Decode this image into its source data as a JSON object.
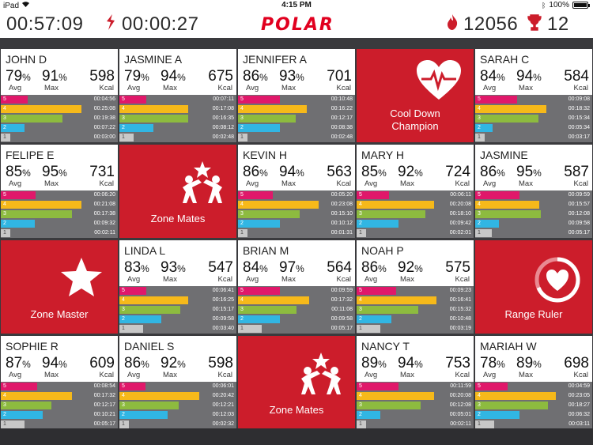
{
  "status_bar": {
    "device": "iPad",
    "time": "4:15 PM",
    "battery": "100%"
  },
  "header": {
    "elapsed": "00:57:09",
    "zone_timer": "00:00:27",
    "brand": "POLAR",
    "total_kcal": "12056",
    "trophies": "12"
  },
  "colors": {
    "z5": "#e0186a",
    "z4": "#f6b91a",
    "z3": "#8dbb3f",
    "z2": "#31b6e3",
    "z1": "#c8c8c8",
    "brand_red": "#cc1d2b"
  },
  "labels": {
    "avg": "Avg",
    "max": "Max",
    "kcal": "Kcal"
  },
  "tiles": [
    {
      "kind": "player",
      "name": "JOHN D",
      "avg": "79",
      "max": "91",
      "kcal": "598",
      "zones": [
        [
          0.23,
          "00:04:56"
        ],
        [
          0.69,
          "00:25:08"
        ],
        [
          0.53,
          "00:19:38"
        ],
        [
          0.2,
          "00:07:22"
        ],
        [
          0.08,
          "00:03:00"
        ]
      ]
    },
    {
      "kind": "player",
      "name": "JASMINE A",
      "avg": "79",
      "max": "94",
      "kcal": "675",
      "zones": [
        [
          0.23,
          "00:07:11"
        ],
        [
          0.59,
          "00:17:08"
        ],
        [
          0.59,
          "00:16:35"
        ],
        [
          0.29,
          "00:08:12"
        ],
        [
          0.12,
          "00:02:48"
        ]
      ]
    },
    {
      "kind": "player",
      "name": "JENNIFER A",
      "avg": "86",
      "max": "93",
      "kcal": "701",
      "zones": [
        [
          0.36,
          "00:10:48"
        ],
        [
          0.59,
          "00:16:22"
        ],
        [
          0.49,
          "00:12:17"
        ],
        [
          0.36,
          "00:08:38"
        ],
        [
          0.08,
          "00:02:48"
        ]
      ]
    },
    {
      "kind": "award",
      "icon": "heart-pulse-icon",
      "label1": "Cool Down",
      "label2": "Champion"
    },
    {
      "kind": "player",
      "name": "SARAH C",
      "avg": "84",
      "max": "94",
      "kcal": "584",
      "zones": [
        [
          0.36,
          "00:09:08"
        ],
        [
          0.61,
          "00:18:32"
        ],
        [
          0.54,
          "00:15:34"
        ],
        [
          0.15,
          "00:05:34"
        ],
        [
          0.08,
          "00:03:17"
        ]
      ]
    },
    {
      "kind": "player",
      "name": "FELIPE E",
      "avg": "85",
      "max": "95",
      "kcal": "731",
      "zones": [
        [
          0.3,
          "00:06:20"
        ],
        [
          0.69,
          "00:21:08"
        ],
        [
          0.61,
          "00:17:38"
        ],
        [
          0.29,
          "00:09:32"
        ],
        [
          0.08,
          "00:02:11"
        ]
      ]
    },
    {
      "kind": "award",
      "icon": "zone-mates-icon",
      "label1": "Zone Mates",
      "label2": ""
    },
    {
      "kind": "player",
      "name": "KEVIN H",
      "avg": "86",
      "max": "94",
      "kcal": "563",
      "zones": [
        [
          0.3,
          "00:05:20"
        ],
        [
          0.69,
          "00:23:08"
        ],
        [
          0.53,
          "00:15:10"
        ],
        [
          0.36,
          "00:10:12"
        ],
        [
          0.08,
          "00:01:31"
        ]
      ]
    },
    {
      "kind": "player",
      "name": "MARY H",
      "avg": "85",
      "max": "92",
      "kcal": "724",
      "zones": [
        [
          0.28,
          "00:06:11"
        ],
        [
          0.66,
          "00:20:08"
        ],
        [
          0.59,
          "00:18:10"
        ],
        [
          0.36,
          "00:09:42"
        ],
        [
          0.08,
          "00:02:01"
        ]
      ]
    },
    {
      "kind": "player",
      "name": "JASMINE",
      "avg": "86",
      "max": "95",
      "kcal": "587",
      "zones": [
        [
          0.38,
          "00:09:59"
        ],
        [
          0.55,
          "00:15:57"
        ],
        [
          0.56,
          "00:12:08"
        ],
        [
          0.2,
          "00:09:58"
        ],
        [
          0.14,
          "00:05:17"
        ]
      ]
    },
    {
      "kind": "award",
      "icon": "star-icon",
      "label1": "Zone Master",
      "label2": ""
    },
    {
      "kind": "player",
      "name": "LINDA L",
      "avg": "83",
      "max": "93",
      "kcal": "547",
      "zones": [
        [
          0.23,
          "00:06:41"
        ],
        [
          0.59,
          "00:16:25"
        ],
        [
          0.52,
          "00:15:17"
        ],
        [
          0.36,
          "00:09:58"
        ],
        [
          0.2,
          "00:03:40"
        ]
      ]
    },
    {
      "kind": "player",
      "name": "BRIAN M",
      "avg": "84",
      "max": "97",
      "kcal": "564",
      "zones": [
        [
          0.36,
          "00:09:59"
        ],
        [
          0.61,
          "00:17:32"
        ],
        [
          0.5,
          "00:11:08"
        ],
        [
          0.36,
          "00:09:58"
        ],
        [
          0.2,
          "00:05:17"
        ]
      ]
    },
    {
      "kind": "player",
      "name": "NOAH P",
      "avg": "86",
      "max": "92",
      "kcal": "575",
      "zones": [
        [
          0.34,
          "00:09:23"
        ],
        [
          0.68,
          "00:16:41"
        ],
        [
          0.53,
          "00:15:32"
        ],
        [
          0.3,
          "00:10:48"
        ],
        [
          0.2,
          "00:03:19"
        ]
      ]
    },
    {
      "kind": "award",
      "icon": "heart-ring-icon",
      "label1": "Range Ruler",
      "label2": ""
    },
    {
      "kind": "player",
      "name": "SOPHIE R",
      "avg": "87",
      "max": "94",
      "kcal": "609",
      "zones": [
        [
          0.31,
          "00:08:54"
        ],
        [
          0.61,
          "00:17:32"
        ],
        [
          0.43,
          "00:12:17"
        ],
        [
          0.36,
          "00:10:21"
        ],
        [
          0.2,
          "00:05:17"
        ]
      ]
    },
    {
      "kind": "player",
      "name": "DANIEL S",
      "avg": "86",
      "max": "92",
      "kcal": "598",
      "zones": [
        [
          0.22,
          "00:06:01"
        ],
        [
          0.68,
          "00:20:42"
        ],
        [
          0.51,
          "00:12:21"
        ],
        [
          0.41,
          "00:12:03"
        ],
        [
          0.08,
          "00:02:32"
        ]
      ]
    },
    {
      "kind": "award",
      "icon": "zone-mates-icon",
      "label1": "Zone Mates",
      "label2": ""
    },
    {
      "kind": "player",
      "name": "NANCY T",
      "avg": "89",
      "max": "94",
      "kcal": "753",
      "zones": [
        [
          0.36,
          "00:11:59"
        ],
        [
          0.66,
          "00:20:08"
        ],
        [
          0.55,
          "00:12:08"
        ],
        [
          0.2,
          "00:05:01"
        ],
        [
          0.08,
          "00:02:11"
        ]
      ]
    },
    {
      "kind": "player",
      "name": "MARIAH W",
      "avg": "78",
      "max": "89",
      "kcal": "698",
      "zones": [
        [
          0.28,
          "00:04:59"
        ],
        [
          0.69,
          "00:23:05"
        ],
        [
          0.62,
          "00:18:27"
        ],
        [
          0.38,
          "00:06:32"
        ],
        [
          0.16,
          "00:03:11"
        ]
      ]
    }
  ]
}
